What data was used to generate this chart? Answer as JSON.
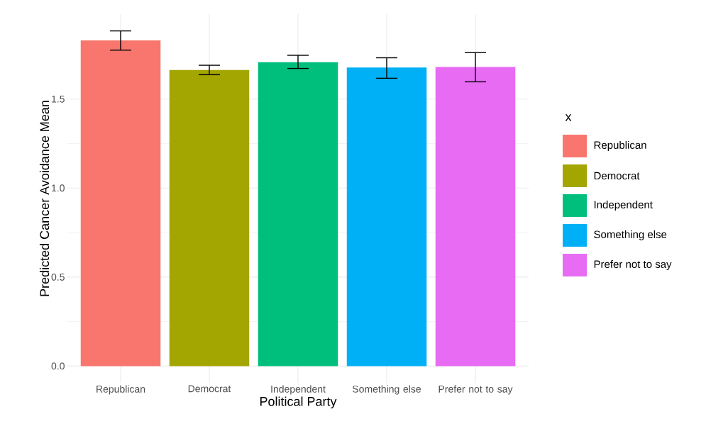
{
  "chart_data": {
    "type": "bar",
    "xlabel": "Political Party",
    "ylabel": "Predicted Cancer Avoidance Mean",
    "legend_title": "x",
    "categories": [
      "Republican",
      "Democrat",
      "Independent",
      "Something else",
      "Prefer not to say"
    ],
    "series": [
      {
        "name": "Republican",
        "color": "#f8766d",
        "values": [
          1.83,
          null,
          null,
          null,
          null
        ],
        "errors": [
          [
            1.775,
            1.883
          ],
          null,
          null,
          null,
          null
        ]
      },
      {
        "name": "Democrat",
        "color": "#a3a500",
        "values": [
          null,
          1.663,
          null,
          null,
          null
        ],
        "errors": [
          null,
          [
            1.637,
            1.69
          ],
          null,
          null,
          null
        ]
      },
      {
        "name": "Independent",
        "color": "#00bf7d",
        "values": [
          null,
          null,
          1.707,
          null,
          null
        ],
        "errors": [
          null,
          null,
          [
            1.672,
            1.746
          ],
          null,
          null
        ]
      },
      {
        "name": "Something else",
        "color": "#00b0f6",
        "values": [
          null,
          null,
          null,
          1.677,
          null
        ],
        "errors": [
          null,
          null,
          null,
          [
            1.617,
            1.732
          ],
          null
        ]
      },
      {
        "name": "Prefer not to say",
        "color": "#e76bf3",
        "values": [
          null,
          null,
          null,
          null,
          1.68
        ],
        "errors": [
          null,
          null,
          null,
          null,
          [
            1.597,
            1.761
          ]
        ]
      }
    ],
    "ylim": [
      -0.094,
      1.977
    ],
    "yticks": [
      {
        "value": 0,
        "label": "0.0"
      },
      0.5,
      {
        "value": 1,
        "label": "1.0"
      },
      1.5
    ],
    "grid": true,
    "legend": "right"
  }
}
